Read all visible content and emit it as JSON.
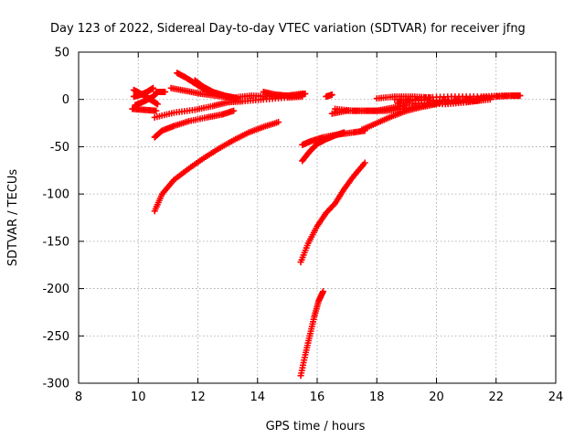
{
  "chart_data": {
    "type": "scatter",
    "title": "Day 123 of 2022, Sidereal Day-to-day VTEC variation (SDTVAR) for receiver jfng",
    "xlabel": "GPS time / hours",
    "ylabel": "SDTVAR / TECUs",
    "xlim": [
      8,
      24
    ],
    "ylim": [
      -300,
      50
    ],
    "xticks": [
      8,
      10,
      12,
      14,
      16,
      18,
      20,
      22,
      24
    ],
    "yticks": [
      -300,
      -250,
      -200,
      -150,
      -100,
      -50,
      0,
      50
    ],
    "grid": true,
    "marker": "plus",
    "color": "#ff0000",
    "tracks": [
      {
        "points": [
          [
            9.85,
            10
          ],
          [
            10.15,
            5
          ],
          [
            10.4,
            0
          ],
          [
            10.65,
            -5
          ]
        ]
      },
      {
        "points": [
          [
            9.9,
            -6
          ],
          [
            10.2,
            -2
          ],
          [
            10.5,
            3
          ],
          [
            10.65,
            8
          ]
        ]
      },
      {
        "points": [
          [
            9.85,
            3
          ],
          [
            10.1,
            5
          ],
          [
            10.3,
            8
          ],
          [
            10.5,
            12
          ]
        ]
      },
      {
        "points": [
          [
            9.8,
            -10
          ],
          [
            10.2,
            -11
          ],
          [
            10.6,
            -12
          ]
        ]
      },
      {
        "points": [
          [
            10.6,
            8
          ],
          [
            10.9,
            8
          ]
        ]
      },
      {
        "points": [
          [
            10.55,
            -19
          ],
          [
            11.2,
            -14
          ],
          [
            11.9,
            -11
          ],
          [
            12.5,
            -7
          ],
          [
            13.0,
            -3
          ],
          [
            13.5,
            -2
          ],
          [
            14.2,
            0
          ],
          [
            15.0,
            2
          ],
          [
            15.5,
            3
          ]
        ]
      },
      {
        "points": [
          [
            10.55,
            -40
          ],
          [
            10.8,
            -33
          ],
          [
            11.2,
            -28
          ],
          [
            11.7,
            -23
          ],
          [
            12.3,
            -19
          ],
          [
            12.8,
            -16
          ],
          [
            13.2,
            -12
          ]
        ]
      },
      {
        "points": [
          [
            11.3,
            28
          ],
          [
            11.6,
            23
          ],
          [
            11.9,
            17
          ],
          [
            12.2,
            11
          ],
          [
            12.6,
            6
          ],
          [
            13.0,
            3
          ],
          [
            13.3,
            1
          ]
        ]
      },
      {
        "points": [
          [
            11.9,
            20
          ],
          [
            12.2,
            13
          ],
          [
            12.5,
            8
          ],
          [
            12.9,
            4
          ],
          [
            13.2,
            2
          ]
        ]
      },
      {
        "points": [
          [
            11.1,
            12
          ],
          [
            11.6,
            9
          ],
          [
            12.1,
            6
          ],
          [
            12.6,
            4
          ],
          [
            13.1,
            2
          ]
        ]
      },
      {
        "points": [
          [
            13.2,
            2
          ],
          [
            13.8,
            4
          ],
          [
            14.4,
            3
          ],
          [
            14.9,
            4
          ],
          [
            15.3,
            4
          ],
          [
            15.5,
            5
          ]
        ]
      },
      {
        "points": [
          [
            14.2,
            8
          ],
          [
            14.6,
            5
          ],
          [
            15.0,
            4
          ],
          [
            15.5,
            6
          ]
        ]
      },
      {
        "points": [
          [
            10.55,
            -118
          ],
          [
            10.8,
            -100
          ],
          [
            11.2,
            -85
          ],
          [
            11.7,
            -73
          ],
          [
            12.2,
            -62
          ],
          [
            12.7,
            -52
          ],
          [
            13.2,
            -43
          ],
          [
            13.7,
            -35
          ],
          [
            14.2,
            -29
          ],
          [
            14.7,
            -24
          ]
        ]
      },
      {
        "points": [
          [
            15.4,
            5
          ],
          [
            15.6,
            6
          ]
        ]
      },
      {
        "points": [
          [
            15.5,
            -48
          ],
          [
            15.8,
            -44
          ],
          [
            16.2,
            -40
          ],
          [
            16.7,
            -37
          ],
          [
            17.2,
            -35
          ],
          [
            17.6,
            -33
          ]
        ]
      },
      {
        "points": [
          [
            15.5,
            -65
          ],
          [
            15.75,
            -55
          ],
          [
            16.0,
            -47
          ],
          [
            16.3,
            -42
          ],
          [
            16.6,
            -38
          ],
          [
            16.9,
            -35
          ]
        ]
      },
      {
        "points": [
          [
            15.45,
            -172
          ],
          [
            15.7,
            -152
          ],
          [
            16.0,
            -134
          ],
          [
            16.3,
            -120
          ],
          [
            16.6,
            -110
          ],
          [
            16.9,
            -95
          ],
          [
            17.2,
            -82
          ],
          [
            17.6,
            -67
          ]
        ]
      },
      {
        "points": [
          [
            15.45,
            -292
          ],
          [
            15.6,
            -270
          ],
          [
            15.75,
            -250
          ],
          [
            15.9,
            -230
          ],
          [
            16.05,
            -213
          ],
          [
            16.2,
            -203
          ]
        ]
      },
      {
        "points": [
          [
            16.5,
            -15
          ],
          [
            17.0,
            -12
          ],
          [
            17.5,
            -12
          ],
          [
            18.0,
            -12
          ],
          [
            18.5,
            -9
          ],
          [
            19.0,
            -6
          ]
        ]
      },
      {
        "points": [
          [
            16.6,
            -10
          ],
          [
            17.2,
            -12
          ],
          [
            17.8,
            -12
          ],
          [
            18.3,
            -12
          ],
          [
            18.8,
            -10
          ]
        ]
      },
      {
        "points": [
          [
            17.5,
            -32
          ],
          [
            18.0,
            -25
          ],
          [
            18.5,
            -18
          ],
          [
            19.0,
            -12
          ],
          [
            19.5,
            -8
          ],
          [
            20.0,
            -5
          ]
        ]
      },
      {
        "points": [
          [
            18.7,
            -4
          ],
          [
            19.5,
            -4
          ],
          [
            20.3,
            -5
          ],
          [
            21.0,
            -3
          ],
          [
            21.5,
            -1
          ]
        ]
      },
      {
        "points": [
          [
            18.6,
            0
          ],
          [
            19.2,
            0
          ],
          [
            20.0,
            -1
          ],
          [
            20.8,
            -1
          ],
          [
            21.5,
            0
          ]
        ]
      },
      {
        "points": [
          [
            18.8,
            -2
          ],
          [
            19.6,
            -1
          ],
          [
            20.4,
            -2
          ],
          [
            21.2,
            -2
          ],
          [
            21.8,
            0
          ]
        ]
      },
      {
        "points": [
          [
            18.9,
            -10
          ],
          [
            19.6,
            -6
          ],
          [
            20.2,
            -3
          ],
          [
            20.8,
            -1
          ],
          [
            21.4,
            1
          ],
          [
            22.0,
            3
          ],
          [
            22.5,
            4
          ],
          [
            22.8,
            4
          ]
        ]
      },
      {
        "points": [
          [
            19.5,
            2
          ],
          [
            20.5,
            3
          ],
          [
            21.5,
            3
          ],
          [
            22.2,
            4
          ],
          [
            22.8,
            4
          ]
        ]
      },
      {
        "points": [
          [
            18.0,
            1
          ],
          [
            18.6,
            3
          ],
          [
            19.2,
            3
          ],
          [
            19.8,
            2
          ]
        ]
      },
      {
        "points": [
          [
            16.3,
            3
          ],
          [
            16.5,
            5
          ]
        ]
      }
    ]
  }
}
